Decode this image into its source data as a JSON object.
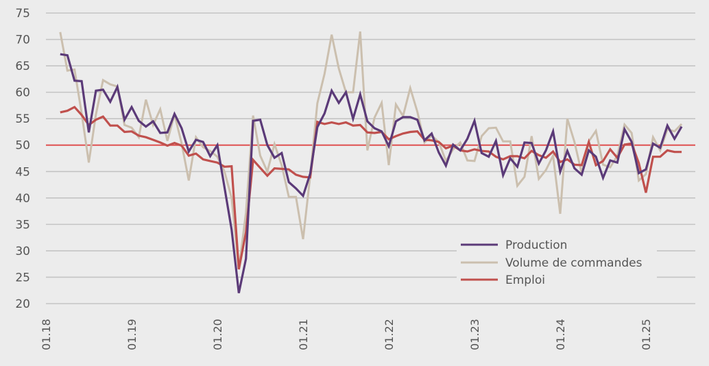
{
  "chart_data": {
    "type": "line",
    "title": "",
    "xlabel": "",
    "ylabel": "",
    "ylim": [
      20,
      75
    ],
    "yticks": [
      20,
      25,
      30,
      35,
      40,
      45,
      50,
      55,
      60,
      65,
      70,
      75
    ],
    "grid": true,
    "reference_line": {
      "value": 50,
      "color": "#e05050"
    },
    "x_start": "2018-03",
    "x_end": "2025-06",
    "frequency": "monthly",
    "xtick_labels": [
      "01.18",
      "01.19",
      "01.20",
      "01.21",
      "01.22",
      "01.23",
      "01.24",
      "01.25"
    ],
    "legend_position": "bottom-right",
    "series": [
      {
        "name": "Production",
        "color": "#5b3a78",
        "values": [
          67.2,
          67.0,
          62.2,
          62.1,
          52.4,
          60.3,
          60.5,
          58.2,
          61.0,
          54.8,
          57.2,
          54.6,
          53.5,
          54.5,
          52.3,
          52.4,
          55.9,
          53.2,
          48.8,
          51.0,
          50.6,
          47.9,
          50.0,
          42.0,
          34.0,
          22.0,
          28.5,
          54.6,
          54.8,
          50.0,
          47.6,
          48.5,
          43.0,
          41.8,
          40.4,
          44.6,
          53.4,
          56.0,
          60.3,
          58.0,
          60.0,
          55.0,
          59.6,
          54.5,
          53.2,
          52.6,
          49.8,
          54.5,
          55.3,
          55.3,
          54.8,
          50.9,
          52.2,
          48.6,
          46.1,
          50.1,
          49.0,
          51.2,
          54.6,
          48.5,
          47.8,
          50.8,
          44.3,
          47.5,
          45.9,
          50.5,
          50.4,
          46.5,
          49.0,
          52.6,
          45.0,
          48.9,
          45.6,
          44.4,
          49.0,
          47.8,
          43.8,
          47.1,
          46.7,
          53.0,
          50.6,
          44.7,
          45.4,
          50.3,
          49.5,
          53.7,
          51.2,
          53.5
        ]
      },
      {
        "name": "Volume de commandes",
        "color": "#cbbfae",
        "values": [
          71.4,
          64.1,
          64.3,
          56.0,
          46.7,
          55.8,
          62.3,
          61.5,
          61.1,
          53.8,
          53.3,
          51.5,
          58.6,
          53.8,
          56.8,
          50.8,
          55.8,
          50.3,
          43.3,
          51.5,
          49.6,
          48.9,
          47.8,
          45.0,
          40.0,
          26.5,
          37.2,
          55.6,
          48.0,
          45.0,
          50.2,
          46.2,
          40.2,
          40.2,
          32.2,
          44.2,
          57.9,
          63.5,
          70.9,
          64.5,
          60.0,
          60.0,
          71.5,
          49.0,
          55.2,
          58.0,
          46.2,
          57.7,
          55.5,
          60.8,
          56.3,
          50.5,
          51.8,
          50.6,
          47.0,
          49.2,
          50.5,
          47.1,
          47.0,
          51.7,
          53.2,
          53.3,
          50.7,
          50.7,
          42.3,
          44.0,
          51.7,
          43.6,
          45.3,
          48.0,
          37.0,
          55.0,
          50.6,
          44.7,
          50.7,
          52.7,
          46.3,
          45.8,
          48.0,
          53.9,
          52.3,
          43.3,
          44.5,
          51.5,
          49.0,
          53.0,
          52.6,
          54.0
        ]
      },
      {
        "name": "Emploi",
        "color": "#c0504d",
        "values": [
          56.2,
          56.5,
          57.2,
          55.7,
          53.8,
          54.8,
          55.4,
          53.7,
          53.7,
          52.5,
          52.6,
          51.8,
          51.5,
          51.0,
          50.5,
          49.9,
          50.4,
          49.9,
          48.0,
          48.4,
          47.3,
          47.0,
          46.7,
          45.9,
          46.0,
          26.5,
          33.5,
          47.2,
          45.7,
          44.2,
          45.6,
          45.5,
          45.4,
          44.4,
          44.0,
          43.9,
          54.4,
          54.0,
          54.3,
          54.0,
          54.3,
          53.7,
          53.8,
          52.4,
          52.3,
          52.5,
          51.1,
          51.7,
          52.2,
          52.5,
          52.6,
          51.0,
          50.9,
          50.6,
          49.4,
          49.9,
          49.0,
          48.8,
          49.2,
          48.9,
          48.8,
          47.8,
          47.3,
          47.9,
          47.9,
          47.5,
          48.9,
          48.1,
          47.6,
          48.8,
          46.8,
          47.3,
          46.3,
          46.2,
          50.6,
          46.2,
          47.0,
          49.2,
          47.6,
          50.1,
          50.3,
          46.6,
          41.0,
          47.8,
          47.8,
          49.0,
          48.7,
          48.7
        ]
      }
    ]
  }
}
